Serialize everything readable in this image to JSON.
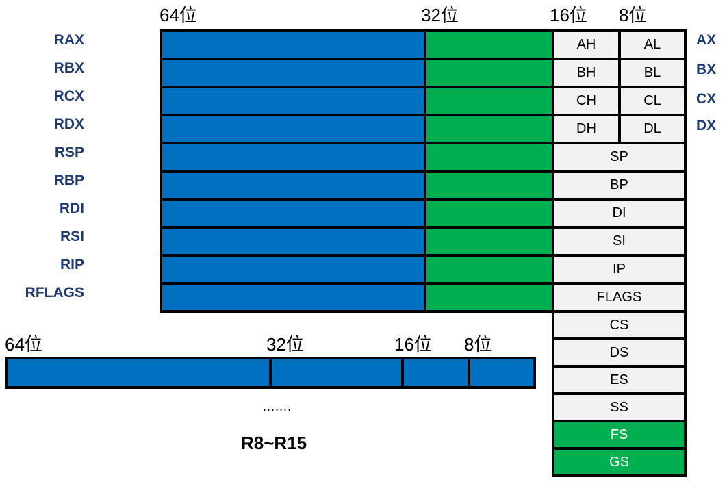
{
  "bit_labels_top": [
    "64位",
    "32位",
    "16位",
    "8位"
  ],
  "bit_labels_bottom": [
    "64位",
    "32位",
    "16位",
    "8位"
  ],
  "registers_64": [
    "RAX",
    "RBX",
    "RCX",
    "RDX",
    "RSP",
    "RBP",
    "RDI",
    "RSI",
    "RIP",
    "RFLAGS"
  ],
  "registers_16_right": [
    "AX",
    "BX",
    "CX",
    "DX"
  ],
  "high_low_bytes": [
    {
      "high": "AH",
      "low": "AL"
    },
    {
      "high": "BH",
      "low": "BL"
    },
    {
      "high": "CH",
      "low": "CL"
    },
    {
      "high": "DH",
      "low": "DL"
    }
  ],
  "registers_16_full": [
    "SP",
    "BP",
    "DI",
    "SI",
    "IP",
    "FLAGS"
  ],
  "segment_registers": [
    "CS",
    "DS",
    "ES",
    "SS",
    "FS",
    "GS"
  ],
  "ellipsis": ".......",
  "extra_registers_caption": "R8~R15",
  "colors": {
    "bits_64": "#0070c0",
    "bits_32": "#00b050",
    "bits_16": "#f2f2f2",
    "segment_highlight": "#00b050",
    "register_label": "#1f3a6e"
  }
}
